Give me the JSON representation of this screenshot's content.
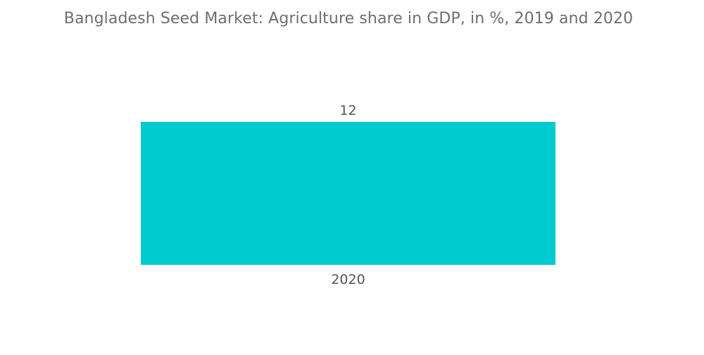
{
  "chart_data": {
    "type": "bar",
    "title": "Bangladesh Seed Market: Agriculture share in GDP, in %, 2019 and 2020",
    "categories": [
      "2020"
    ],
    "values": [
      12
    ],
    "data_labels": [
      "12"
    ],
    "ylim": [
      0,
      12
    ],
    "grid": false,
    "legend": "none",
    "bar_color": "#00cccf"
  }
}
